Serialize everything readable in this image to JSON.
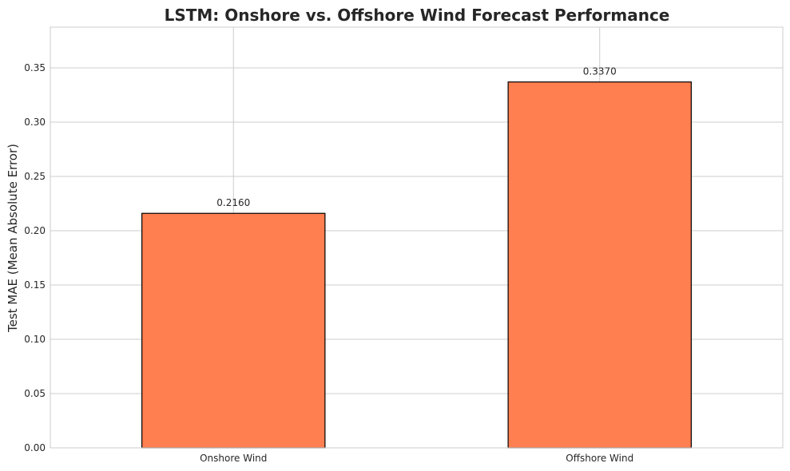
{
  "chart_data": {
    "type": "bar",
    "title": "LSTM: Onshore vs. Offshore Wind Forecast Performance",
    "xlabel": "",
    "ylabel": "Test MAE (Mean Absolute Error)",
    "categories": [
      "Onshore Wind",
      "Offshore Wind"
    ],
    "values": [
      0.216,
      0.337
    ],
    "value_labels": [
      "0.2160",
      "0.3370"
    ],
    "ylim": [
      0,
      0.3875
    ],
    "yticks": [
      0.0,
      0.05,
      0.1,
      0.15,
      0.2,
      0.25,
      0.3,
      0.35
    ],
    "ytick_labels": [
      "0.00",
      "0.05",
      "0.10",
      "0.15",
      "0.20",
      "0.25",
      "0.30",
      "0.35"
    ],
    "grid": true,
    "legend": "none",
    "colors": {
      "bar": "#ff7f50",
      "edge": "#000000",
      "grid": "#cccccc",
      "spine": "#cccccc"
    }
  }
}
